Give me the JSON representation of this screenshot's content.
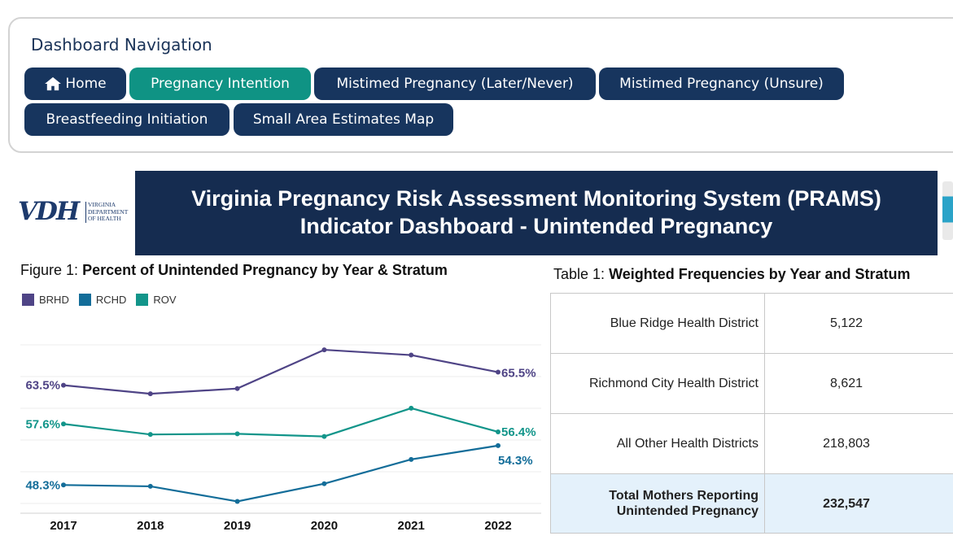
{
  "nav": {
    "title": "Dashboard Navigation",
    "buttons": [
      {
        "label": "Home",
        "icon": "home-icon",
        "active": false
      },
      {
        "label": "Pregnancy Intention",
        "active": true
      },
      {
        "label": "Mistimed Pregnancy (Later/Never)",
        "active": false
      },
      {
        "label": "Mistimed Pregnancy (Unsure)",
        "active": false
      },
      {
        "label": "Breastfeeding Initiation",
        "active": false
      },
      {
        "label": "Small Area Estimates Map",
        "active": false
      }
    ],
    "colors": {
      "button": "#17355e",
      "active": "#0f9384",
      "title": "#1a3358"
    }
  },
  "logo": {
    "letters": "VDH",
    "text_lines": [
      "VIRGINIA",
      "DEPARTMENT",
      "OF HEALTH"
    ]
  },
  "header": {
    "line1": "Virginia Pregnancy Risk Assessment Monitoring System (PRAMS)",
    "line2": "Indicator Dashboard - Unintended Pregnancy",
    "background": "#152c50"
  },
  "figure": {
    "prefix": "Figure 1:",
    "title": "Percent of Unintended Pregnancy  by Year & Stratum"
  },
  "chart_data": {
    "type": "line",
    "x": [
      "2017",
      "2018",
      "2019",
      "2020",
      "2021",
      "2022"
    ],
    "ylim": [
      44,
      73
    ],
    "grid": true,
    "legend": "top-left",
    "series": [
      {
        "name": "BRHD",
        "color": "#4f4486",
        "values": [
          63.5,
          62.2,
          63.0,
          68.9,
          68.1,
          65.5
        ],
        "labels": {
          "0": "63.5%",
          "5": "65.5%"
        }
      },
      {
        "name": "RCHD",
        "color": "#136d99",
        "values": [
          48.3,
          48.1,
          45.8,
          48.5,
          52.2,
          54.3
        ],
        "labels": {
          "0": "48.3%",
          "5": "54.3%"
        }
      },
      {
        "name": "ROV",
        "color": "#12958a",
        "values": [
          57.6,
          56.0,
          56.1,
          55.7,
          60.0,
          56.4
        ],
        "labels": {
          "0": "57.6%",
          "5": "56.4%"
        }
      }
    ]
  },
  "table": {
    "prefix": "Table 1:",
    "title": "Weighted Frequencies by Year and Stratum",
    "rows": [
      {
        "label": "Blue Ridge Health District",
        "value": "5,122"
      },
      {
        "label": "Richmond City Health District",
        "value": "8,621"
      },
      {
        "label": "All Other Health Districts",
        "value": "218,803"
      }
    ],
    "total": {
      "label_line1": "Total Mothers Reporting",
      "label_line2": "Unintended Pregnancy",
      "value": "232,547"
    }
  }
}
